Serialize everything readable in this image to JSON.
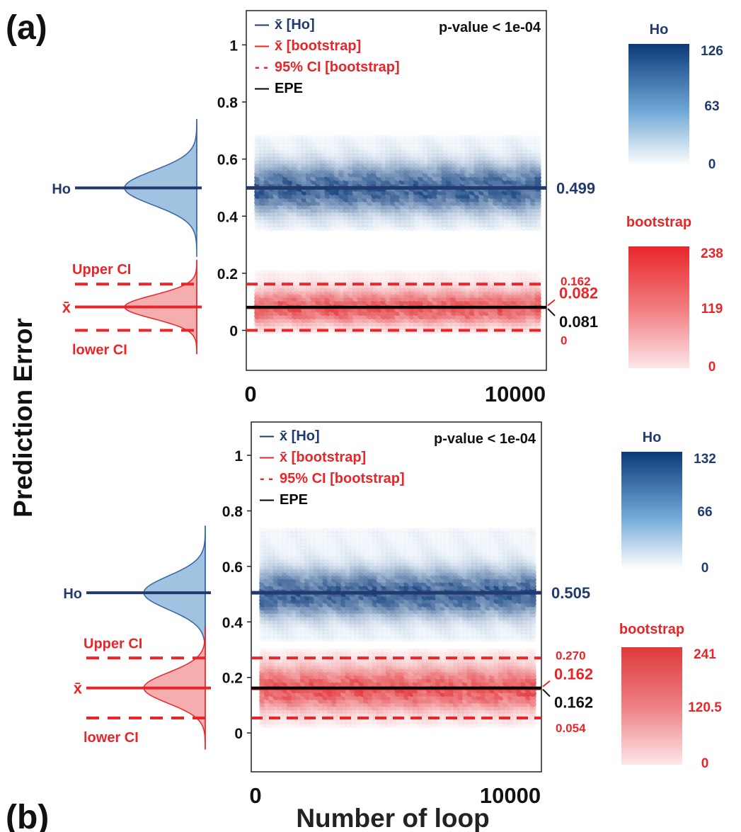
{
  "figure": {
    "shared_ylabel": "Prediction Error",
    "shared_xlabel": "Number of loop",
    "colors": {
      "ho_dark": "#0c3a7a",
      "ho_line": "#223a6e",
      "ho_fill": "#8fb8dc",
      "boot_red": "#e8262a",
      "boot_fill": "#f29a9a",
      "epe": "#000000"
    }
  },
  "chart_data": [
    {
      "type": "scatter",
      "panel_label": "(a)",
      "xlim": [
        0,
        10000
      ],
      "ylim": [
        -0.14,
        1.12
      ],
      "yticks": [
        0,
        0.2,
        0.4,
        0.6,
        0.8,
        1
      ],
      "xtick_labels": [
        "0",
        "10000"
      ],
      "pvalue_label": "p-value < 1e-04",
      "legend": [
        {
          "symbol": "—",
          "text": "x̄ [Ho]",
          "color": "#223a6e"
        },
        {
          "symbol": "—",
          "text": "x̄ [bootstrap]",
          "color": "#e8262a"
        },
        {
          "symbol": "- -",
          "text": "95% CI [bootstrap]",
          "color": "#e8262a"
        },
        {
          "symbol": "—",
          "text": "EPE",
          "color": "#000000"
        }
      ],
      "ho": {
        "mean": 0.499,
        "mean_label": "0.499",
        "band": [
          0.36,
          0.68
        ],
        "sd": 0.06
      },
      "bootstrap": {
        "mean": 0.082,
        "mean_label": "0.082",
        "ci_upper": 0.162,
        "ci_upper_label": "0.162",
        "ci_lower": 0,
        "ci_lower_label": "0",
        "band": [
          0,
          0.2
        ],
        "sd": 0.041
      },
      "epe": {
        "value": 0.081,
        "label": "0.081"
      },
      "density_labels": {
        "ho": "Ho",
        "mean": "x̄",
        "upper": "Upper CI",
        "lower": "lower CI"
      },
      "colorbars": [
        {
          "title": "Ho",
          "max": "126",
          "mid": "63",
          "min": "0",
          "color": "blue"
        },
        {
          "title": "bootstrap",
          "max": "238",
          "mid": "119",
          "min": "0",
          "color": "red"
        }
      ]
    },
    {
      "type": "scatter",
      "panel_label": "(b)",
      "xlim": [
        0,
        10000
      ],
      "ylim": [
        -0.14,
        1.12
      ],
      "yticks": [
        0,
        0.2,
        0.4,
        0.6,
        0.8,
        1
      ],
      "xtick_labels": [
        "0",
        "10000"
      ],
      "pvalue_label": "p-value < 1e-04",
      "legend": [
        {
          "symbol": "—",
          "text": "x̄ [Ho]",
          "color": "#223a6e"
        },
        {
          "symbol": "—",
          "text": "x̄ [bootstrap]",
          "color": "#e8262a"
        },
        {
          "symbol": "- -",
          "text": "95% CI [bootstrap]",
          "color": "#e8262a"
        },
        {
          "symbol": "—",
          "text": "EPE",
          "color": "#000000"
        }
      ],
      "ho": {
        "mean": 0.505,
        "mean_label": "0.505",
        "band": [
          0.34,
          0.73
        ],
        "sd": 0.06
      },
      "bootstrap": {
        "mean": 0.162,
        "mean_label": "0.162",
        "ci_upper": 0.27,
        "ci_upper_label": "0.270",
        "ci_lower": 0.054,
        "ci_lower_label": "0.054",
        "band": [
          0.03,
          0.3
        ],
        "sd": 0.055
      },
      "epe": {
        "value": 0.162,
        "label": "0.162"
      },
      "density_labels": {
        "ho": "Ho",
        "mean": "x̄",
        "upper": "Upper CI",
        "lower": "lower CI"
      },
      "colorbars": [
        {
          "title": "Ho",
          "max": "132",
          "mid": "66",
          "min": "0",
          "color": "blue"
        },
        {
          "title": "bootstrap",
          "max": "241",
          "mid": "120.5",
          "min": "0",
          "color": "red"
        }
      ]
    }
  ]
}
